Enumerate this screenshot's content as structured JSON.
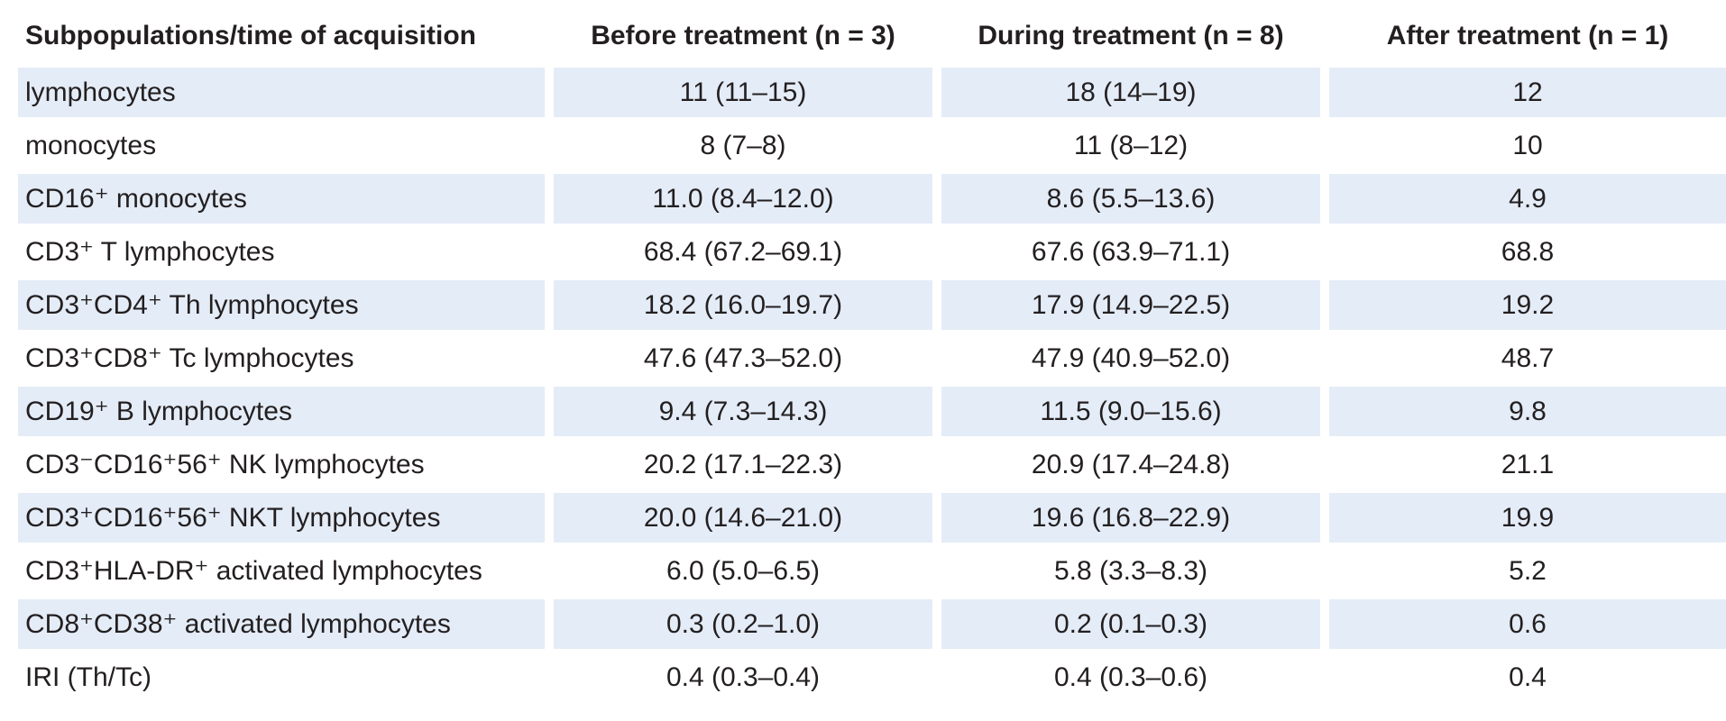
{
  "table": {
    "headers": [
      "Subpopulations/time of acquisition",
      "Before treatment (n = 3)",
      "During treatment (n = 8)",
      "After treatment (n = 1)"
    ],
    "rows": [
      {
        "label": "lymphocytes",
        "before": "11 (11–15)",
        "during": "18 (14–19)",
        "after": "12",
        "shaded": true
      },
      {
        "label": "monocytes",
        "before": "8 (7–8)",
        "during": "11 (8–12)",
        "after": "10",
        "shaded": false
      },
      {
        "label": "CD16⁺ monocytes",
        "before": "11.0 (8.4–12.0)",
        "during": "8.6 (5.5–13.6)",
        "after": "4.9",
        "shaded": true
      },
      {
        "label": "CD3⁺ T lymphocytes",
        "before": "68.4 (67.2–69.1)",
        "during": "67.6 (63.9–71.1)",
        "after": "68.8",
        "shaded": false
      },
      {
        "label": "CD3⁺CD4⁺ Th lymphocytes",
        "before": "18.2 (16.0–19.7)",
        "during": "17.9 (14.9–22.5)",
        "after": "19.2",
        "shaded": true
      },
      {
        "label": "CD3⁺CD8⁺ Tc lymphocytes",
        "before": "47.6 (47.3–52.0)",
        "during": "47.9 (40.9–52.0)",
        "after": "48.7",
        "shaded": false
      },
      {
        "label": "CD19⁺ B lymphocytes",
        "before": "9.4 (7.3–14.3)",
        "during": "11.5 (9.0–15.6)",
        "after": "9.8",
        "shaded": true
      },
      {
        "label": "CD3⁻CD16⁺56⁺ NK lymphocytes",
        "before": "20.2 (17.1–22.3)",
        "during": "20.9 (17.4–24.8)",
        "after": "21.1",
        "shaded": false
      },
      {
        "label": "CD3⁺CD16⁺56⁺ NKT lymphocytes",
        "before": "20.0 (14.6–21.0)",
        "during": "19.6 (16.8–22.9)",
        "after": "19.9",
        "shaded": true
      },
      {
        "label": "CD3⁺HLA-DR⁺ activated lymphocytes",
        "before": "6.0 (5.0–6.5)",
        "during": "5.8 (3.3–8.3)",
        "after": "5.2",
        "shaded": false
      },
      {
        "label": "CD8⁺CD38⁺ activated lymphocytes",
        "before": "0.3 (0.2–1.0)",
        "during": "0.2 (0.1–0.3)",
        "after": "0.6",
        "shaded": true
      },
      {
        "label": "IRI (Th/Tc)",
        "before": "0.4 (0.3–0.4)",
        "during": "0.4 (0.3–0.6)",
        "after": "0.4",
        "shaded": false
      }
    ]
  },
  "colors": {
    "shade": "#e4ecf7",
    "text": "#231f20"
  }
}
